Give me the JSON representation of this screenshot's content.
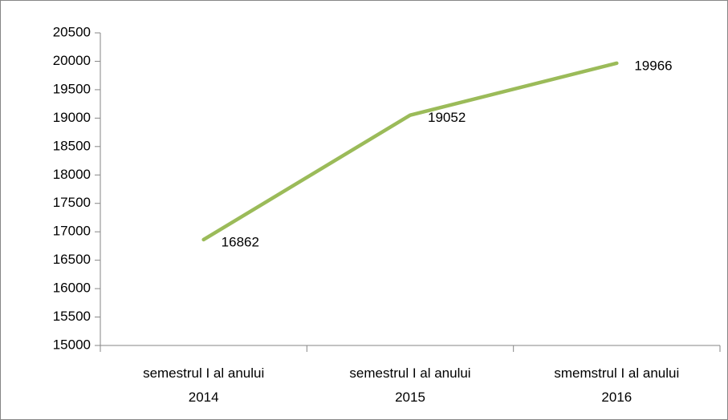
{
  "chart_data": {
    "type": "line",
    "categories": [
      "semestrul I al anului 2014",
      "semestrul I al anului 2015",
      "smemstrul I al anului 2016"
    ],
    "series": [
      {
        "name": null,
        "color": "#9bbb59",
        "values": [
          16862,
          19052,
          19966
        ]
      }
    ],
    "ylim": [
      15000,
      20500
    ],
    "yticks": [
      15000,
      15500,
      16000,
      16500,
      17000,
      17500,
      18000,
      18500,
      19000,
      19500,
      20000,
      20500
    ],
    "data_labels": true
  }
}
